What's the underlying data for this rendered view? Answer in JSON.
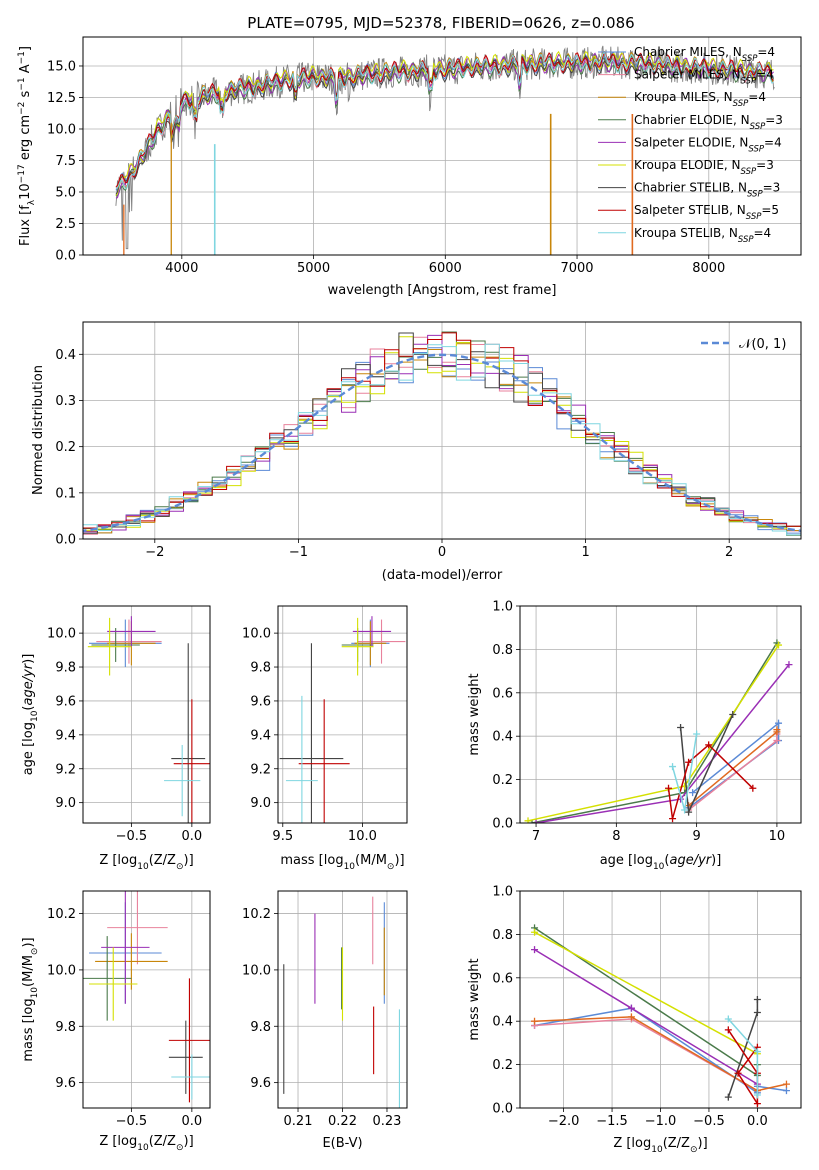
{
  "figure_title": "PLATE=0795, MJD=52378, FIBERID=0626, z=0.086",
  "legend_models": [
    {
      "pre": "Chabrier MILES, N",
      "sub": "SSP",
      "post": "=4",
      "color": "#5b8ad6"
    },
    {
      "pre": "Salpeter MILES, N",
      "sub": "SSP",
      "post": "=4",
      "color": "#e8829c"
    },
    {
      "pre": "Kroupa MILES, N",
      "sub": "SSP",
      "post": "=4",
      "color": "#c8860a"
    },
    {
      "pre": "Chabrier ELODIE, N",
      "sub": "SSP",
      "post": "=3",
      "color": "#4a7a4a"
    },
    {
      "pre": "Salpeter ELODIE, N",
      "sub": "SSP",
      "post": "=4",
      "color": "#9a2fb5"
    },
    {
      "pre": "Kroupa ELODIE, N",
      "sub": "SSP",
      "post": "=3",
      "color": "#d4e000"
    },
    {
      "pre": "Chabrier STELIB, N",
      "sub": "SSP",
      "post": "=3",
      "color": "#444444"
    },
    {
      "pre": "Salpeter STELIB, N",
      "sub": "SSP",
      "post": "=5",
      "color": "#c00000"
    },
    {
      "pre": "Kroupa STELIB, N",
      "sub": "SSP",
      "post": "=4",
      "color": "#7fd6e0"
    }
  ],
  "chart_data": [
    {
      "id": "spectrum",
      "type": "line",
      "xlabel": "wavelength [Angstrom, rest frame]",
      "ylabel_parts": [
        "Flux [f",
        "λ",
        "10",
        "−17",
        " erg cm",
        "−2",
        " s",
        "−1",
        " A",
        "−1",
        "]"
      ],
      "xlim": [
        3250,
        8700
      ],
      "ylim": [
        0,
        17.3
      ],
      "xticks": [
        4000,
        5000,
        6000,
        7000,
        8000
      ],
      "yticks": [
        0.0,
        2.5,
        5.0,
        7.5,
        10.0,
        12.5,
        15.0
      ],
      "ytick_labels": [
        "0.0",
        "2.5",
        "5.0",
        "7.5",
        "10.0",
        "12.5",
        "15.0"
      ],
      "continuum": [
        [
          3500,
          5.2
        ],
        [
          3600,
          6.2
        ],
        [
          3700,
          7.8
        ],
        [
          3800,
          9.6
        ],
        [
          3900,
          11.0
        ],
        [
          4000,
          12.1
        ],
        [
          4200,
          12.7
        ],
        [
          4400,
          13.1
        ],
        [
          4600,
          13.4
        ],
        [
          4800,
          13.9
        ],
        [
          5000,
          14.1
        ],
        [
          5200,
          14.0
        ],
        [
          5400,
          14.3
        ],
        [
          5600,
          14.5
        ],
        [
          5800,
          14.6
        ],
        [
          6000,
          14.7
        ],
        [
          6200,
          14.9
        ],
        [
          6400,
          15.0
        ],
        [
          6600,
          15.1
        ],
        [
          6800,
          15.2
        ],
        [
          7000,
          15.2
        ],
        [
          7200,
          15.3
        ],
        [
          7400,
          15.2
        ],
        [
          7600,
          15.1
        ],
        [
          7800,
          14.9
        ],
        [
          8000,
          14.8
        ],
        [
          8200,
          14.6
        ],
        [
          8400,
          14.5
        ],
        [
          8500,
          14.4
        ]
      ],
      "spikes": [
        [
          4250,
          0.0
        ],
        [
          6800,
          0.0
        ],
        [
          7420,
          0.0
        ]
      ]
    },
    {
      "id": "residuals",
      "type": "histogram",
      "xlabel": "(data-model)/error",
      "ylabel": "Normed distribution",
      "xlim": [
        -2.5,
        2.5
      ],
      "ylim": [
        0,
        0.47
      ],
      "xticks": [
        -2,
        -1,
        0,
        1,
        2
      ],
      "xtick_labels": [
        "−2",
        "−1",
        "0",
        "1",
        "2"
      ],
      "yticks": [
        0.0,
        0.1,
        0.2,
        0.3,
        0.4
      ],
      "ytick_labels": [
        "0.0",
        "0.1",
        "0.2",
        "0.3",
        "0.4"
      ],
      "legend": "𝒩(0, 1)",
      "bin_width": 0.1
    },
    {
      "id": "age-vs-Z",
      "type": "scatter",
      "xlabel_parts": [
        "Z [log",
        "10",
        "(Z/Z",
        "⊙",
        ")]"
      ],
      "ylabel_parts": [
        "age  [log",
        "10",
        "(",
        "age/yr",
        ")]"
      ],
      "xlim": [
        -0.9,
        0.15
      ],
      "ylim": [
        8.88,
        10.16
      ],
      "xticks": [
        -0.5,
        0.0
      ],
      "xtick_labels": [
        "−0.5",
        "0.0"
      ],
      "yticks": [
        9.0,
        9.2,
        9.4,
        9.6,
        9.8,
        10.0
      ],
      "ytick_labels": [
        "9.0",
        "9.2",
        "9.4",
        "9.6",
        "9.8",
        "10.0"
      ],
      "points": [
        {
          "x": -0.55,
          "y": 9.94,
          "xerr": 0.3,
          "yerr": 0.14,
          "color": "#5b8ad6"
        },
        {
          "x": -0.52,
          "y": 9.95,
          "xerr": 0.27,
          "yerr": 0.13,
          "color": "#e8829c"
        },
        {
          "x": -0.5,
          "y": 9.94,
          "xerr": 0.2,
          "yerr": 0.13,
          "color": "#c8860a"
        },
        {
          "x": -0.63,
          "y": 9.93,
          "xerr": 0.2,
          "yerr": 0.1,
          "color": "#4a7a4a"
        },
        {
          "x": -0.5,
          "y": 10.01,
          "xerr": 0.2,
          "yerr": 0.09,
          "color": "#9a2fb5"
        },
        {
          "x": -0.68,
          "y": 9.92,
          "xerr": 0.18,
          "yerr": 0.17,
          "color": "#d4e000"
        },
        {
          "x": -0.03,
          "y": 9.26,
          "xerr": 0.14,
          "yerr": 0.68,
          "color": "#444444"
        },
        {
          "x": 0.0,
          "y": 9.23,
          "xerr": 0.15,
          "yerr": 0.38,
          "color": "#c00000"
        },
        {
          "x": -0.08,
          "y": 9.13,
          "xerr": 0.15,
          "yerr": 0.21,
          "color": "#7fd6e0"
        }
      ]
    },
    {
      "id": "age-vs-mass",
      "type": "scatter",
      "xlabel_parts": [
        "mass [log",
        "10",
        "(M/M",
        "⊙",
        ")]"
      ],
      "xlim": [
        9.47,
        10.28
      ],
      "ylim": [
        8.88,
        10.16
      ],
      "xticks": [
        9.5,
        10.0
      ],
      "xtick_labels": [
        "9.5",
        "10.0"
      ],
      "yticks": [
        9.0,
        9.2,
        9.4,
        9.6,
        9.8,
        10.0
      ],
      "ytick_labels": [
        "9.0",
        "9.2",
        "9.4",
        "9.6",
        "9.8",
        "10.0"
      ],
      "points": [
        {
          "x": 10.05,
          "y": 9.94,
          "xerr": 0.12,
          "yerr": 0.14,
          "color": "#5b8ad6"
        },
        {
          "x": 10.12,
          "y": 9.95,
          "xerr": 0.15,
          "yerr": 0.13,
          "color": "#e8829c"
        },
        {
          "x": 10.05,
          "y": 9.94,
          "xerr": 0.1,
          "yerr": 0.13,
          "color": "#c8860a"
        },
        {
          "x": 9.97,
          "y": 9.93,
          "xerr": 0.1,
          "yerr": 0.1,
          "color": "#4a7a4a"
        },
        {
          "x": 10.06,
          "y": 10.01,
          "xerr": 0.12,
          "yerr": 0.09,
          "color": "#9a2fb5"
        },
        {
          "x": 9.97,
          "y": 9.92,
          "xerr": 0.1,
          "yerr": 0.17,
          "color": "#d4e000"
        },
        {
          "x": 9.68,
          "y": 9.26,
          "xerr": 0.2,
          "yerr": 0.68,
          "color": "#444444"
        },
        {
          "x": 9.76,
          "y": 9.23,
          "xerr": 0.16,
          "yerr": 0.38,
          "color": "#c00000"
        },
        {
          "x": 9.62,
          "y": 9.13,
          "xerr": 0.1,
          "yerr": 0.5,
          "color": "#7fd6e0"
        }
      ]
    },
    {
      "id": "weight-vs-age",
      "type": "line",
      "xlabel_parts": [
        "age  [log",
        "10",
        "(",
        "age/yr",
        ")]"
      ],
      "ylabel": "mass weight",
      "xlim": [
        6.8,
        10.3
      ],
      "ylim": [
        0,
        1.0
      ],
      "xticks": [
        7,
        8,
        9,
        10
      ],
      "xtick_labels": [
        "7",
        "8",
        "9",
        "10"
      ],
      "yticks": [
        0.0,
        0.2,
        0.4,
        0.6,
        0.8,
        1.0
      ],
      "ytick_labels": [
        "0.0",
        "0.2",
        "0.4",
        "0.6",
        "0.8",
        "1.0"
      ],
      "series": [
        {
          "color": "#5b8ad6",
          "x": [
            8.9,
            10.02,
            10.02,
            8.95
          ],
          "y": [
            0.07,
            0.38,
            0.46,
            0.14
          ]
        },
        {
          "color": "#e8829c",
          "x": [
            8.9,
            10.0,
            10.0
          ],
          "y": [
            0.06,
            0.38,
            0.41
          ]
        },
        {
          "color": "#e06a20",
          "x": [
            8.9,
            10.0,
            10.0
          ],
          "y": [
            0.08,
            0.42,
            0.43
          ]
        },
        {
          "color": "#4a7a4a",
          "x": [
            6.95,
            8.85,
            10.0
          ],
          "y": [
            0.0,
            0.14,
            0.83
          ]
        },
        {
          "color": "#9a2fb5",
          "x": [
            7.0,
            8.8,
            10.15
          ],
          "y": [
            0.0,
            0.11,
            0.73
          ]
        },
        {
          "color": "#d4e000",
          "x": [
            6.9,
            8.85,
            10.02
          ],
          "y": [
            0.01,
            0.17,
            0.82
          ]
        },
        {
          "color": "#444444",
          "x": [
            8.8,
            8.9,
            9.45
          ],
          "y": [
            0.44,
            0.05,
            0.5
          ]
        },
        {
          "color": "#c00000",
          "x": [
            8.65,
            8.7,
            8.9,
            9.15,
            9.7
          ],
          "y": [
            0.16,
            0.02,
            0.28,
            0.36,
            0.16
          ]
        },
        {
          "color": "#7fd6e0",
          "x": [
            8.7,
            8.85,
            9.0
          ],
          "y": [
            0.26,
            0.06,
            0.41
          ]
        }
      ]
    },
    {
      "id": "mass-vs-Z",
      "type": "scatter",
      "xlabel_parts": [
        "Z [log",
        "10",
        "(Z/Z",
        "⊙",
        ")]"
      ],
      "ylabel_parts": [
        "mass [log",
        "10",
        "(M/M",
        "⊙",
        ")]"
      ],
      "xlim": [
        -0.9,
        0.15
      ],
      "ylim": [
        9.51,
        10.28
      ],
      "xticks": [
        -0.5,
        0.0
      ],
      "xtick_labels": [
        "−0.5",
        "0.0"
      ],
      "yticks": [
        9.6,
        9.8,
        10.0,
        10.2
      ],
      "ytick_labels": [
        "9.6",
        "9.8",
        "10.0",
        "10.2"
      ],
      "points": [
        {
          "x": -0.55,
          "y": 10.06,
          "xerr": 0.3,
          "yerr": 0.18,
          "color": "#5b8ad6"
        },
        {
          "x": -0.45,
          "y": 10.15,
          "xerr": 0.25,
          "yerr": 0.13,
          "color": "#e8829c"
        },
        {
          "x": -0.5,
          "y": 10.03,
          "xerr": 0.3,
          "yerr": 0.1,
          "color": "#c8860a"
        },
        {
          "x": -0.7,
          "y": 9.97,
          "xerr": 0.2,
          "yerr": 0.15,
          "color": "#4a7a4a"
        },
        {
          "x": -0.55,
          "y": 10.08,
          "xerr": 0.2,
          "yerr": 0.2,
          "color": "#9a2fb5"
        },
        {
          "x": -0.65,
          "y": 9.95,
          "xerr": 0.2,
          "yerr": 0.13,
          "color": "#d4e000"
        },
        {
          "x": -0.05,
          "y": 9.69,
          "xerr": 0.14,
          "yerr": 0.13,
          "color": "#444444"
        },
        {
          "x": -0.02,
          "y": 9.75,
          "xerr": 0.17,
          "yerr": 0.22,
          "color": "#c00000"
        },
        {
          "x": 0.0,
          "y": 9.62,
          "xerr": 0.17,
          "yerr": 0.08,
          "color": "#7fd6e0"
        }
      ]
    },
    {
      "id": "mass-vs-EBV",
      "type": "scatter",
      "xlabel": "E(B-V)",
      "xlim": [
        0.2055,
        0.2345
      ],
      "ylim": [
        9.51,
        10.28
      ],
      "xticks": [
        0.21,
        0.22,
        0.23
      ],
      "xtick_labels": [
        "0.21",
        "0.22",
        "0.23"
      ],
      "yticks": [
        9.6,
        9.8,
        10.0,
        10.2
      ],
      "ytick_labels": [
        "9.6",
        "9.8",
        "10.0",
        "10.2"
      ],
      "points": [
        {
          "x": 0.2294,
          "y": 10.06,
          "yerr": 0.18,
          "color": "#5b8ad6"
        },
        {
          "x": 0.2268,
          "y": 10.14,
          "yerr": 0.12,
          "color": "#e8829c"
        },
        {
          "x": 0.2294,
          "y": 10.03,
          "yerr": 0.12,
          "color": "#c8860a"
        },
        {
          "x": 0.2198,
          "y": 9.97,
          "yerr": 0.11,
          "color": "#4a7a4a"
        },
        {
          "x": 0.2138,
          "y": 10.04,
          "yerr": 0.16,
          "color": "#9a2fb5"
        },
        {
          "x": 0.22,
          "y": 9.95,
          "yerr": 0.13,
          "color": "#d4e000"
        },
        {
          "x": 0.2068,
          "y": 9.79,
          "yerr": 0.23,
          "color": "#444444"
        },
        {
          "x": 0.227,
          "y": 9.75,
          "yerr": 0.12,
          "color": "#c00000"
        },
        {
          "x": 0.2328,
          "y": 9.68,
          "yerr": 0.18,
          "color": "#7fd6e0"
        }
      ]
    },
    {
      "id": "weight-vs-Z",
      "type": "line",
      "xlabel_parts": [
        "Z [log",
        "10",
        "(Z/Z",
        "⊙",
        ")]"
      ],
      "ylabel": "mass weight",
      "xlim": [
        -2.45,
        0.45
      ],
      "ylim": [
        0,
        1.0
      ],
      "xticks": [
        -2.0,
        -1.5,
        -1.0,
        -0.5,
        0.0
      ],
      "xtick_labels": [
        "−2.0",
        "−1.5",
        "−1.0",
        "−0.5",
        "0.0"
      ],
      "yticks": [
        0.0,
        0.2,
        0.4,
        0.6,
        0.8,
        1.0
      ],
      "ytick_labels": [
        "0.0",
        "0.2",
        "0.4",
        "0.6",
        "0.8",
        "1.0"
      ],
      "series": [
        {
          "color": "#5b8ad6",
          "x": [
            -2.3,
            -1.3,
            0.0,
            0.0,
            0.3
          ],
          "y": [
            0.38,
            0.46,
            0.07,
            0.1,
            0.08
          ]
        },
        {
          "color": "#e8829c",
          "x": [
            -2.3,
            -1.3,
            0.0
          ],
          "y": [
            0.38,
            0.41,
            0.08
          ]
        },
        {
          "color": "#e06a20",
          "x": [
            -2.3,
            -1.3,
            0.0,
            0.3
          ],
          "y": [
            0.4,
            0.42,
            0.08,
            0.11
          ]
        },
        {
          "color": "#4a7a4a",
          "x": [
            -2.3,
            0.0,
            0.0
          ],
          "y": [
            0.83,
            0.15,
            0.2
          ]
        },
        {
          "color": "#9a2fb5",
          "x": [
            -2.3,
            -1.3,
            0.0
          ],
          "y": [
            0.73,
            0.46,
            0.11
          ]
        },
        {
          "color": "#d4e000",
          "x": [
            -2.3,
            0.0
          ],
          "y": [
            0.81,
            0.25
          ]
        },
        {
          "color": "#444444",
          "x": [
            -0.3,
            0.0,
            0.0
          ],
          "y": [
            0.05,
            0.44,
            0.5
          ]
        },
        {
          "color": "#c00000",
          "x": [
            -0.3,
            0.0,
            0.0,
            -0.2,
            0.0
          ],
          "y": [
            0.36,
            0.16,
            0.02,
            0.16,
            0.28
          ]
        },
        {
          "color": "#7fd6e0",
          "x": [
            -0.3,
            0.0,
            0.0
          ],
          "y": [
            0.41,
            0.26,
            0.06
          ]
        }
      ]
    }
  ]
}
